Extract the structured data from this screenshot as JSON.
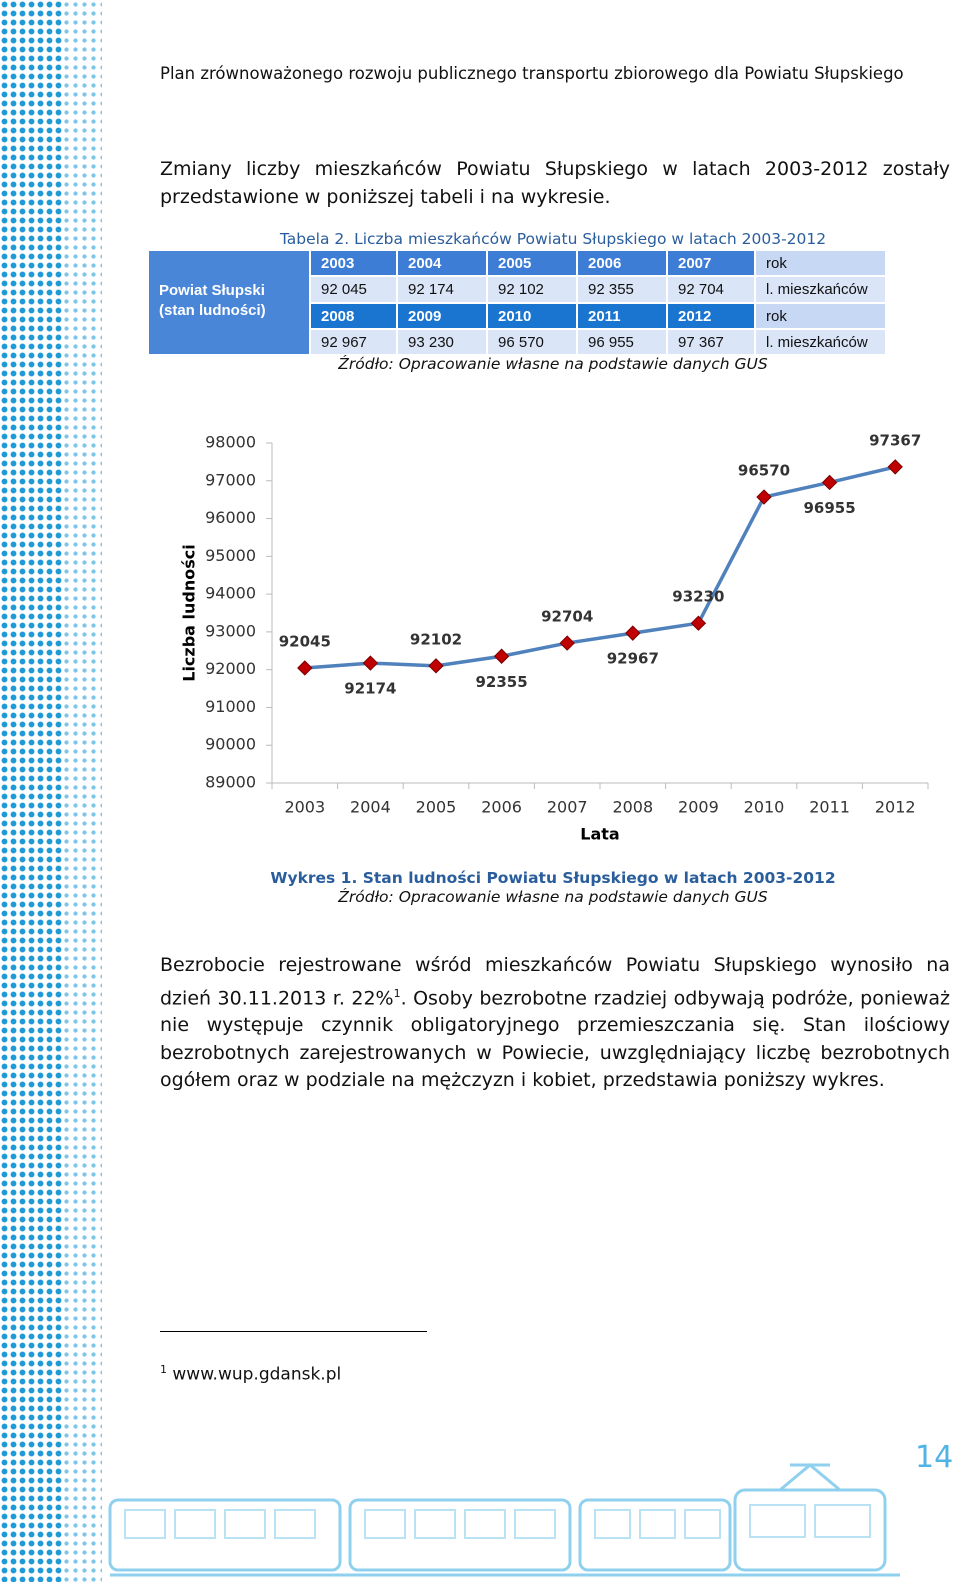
{
  "header": {
    "title": "Plan zrównoważonego rozwoju publicznego transportu zbiorowego dla Powiatu Słupskiego"
  },
  "intro": "Zmiany liczby mieszkańców Powiatu Słupskiego w latach 2003-2012 zostały przedstawione w poniższej tabeli i na wykresie.",
  "table": {
    "caption": "Tabela 2. Liczba mieszkańców Powiatu Słupskiego w latach 2003-2012",
    "stub": [
      "Powiat Słupski",
      "(stan ludności)"
    ],
    "rows": [
      [
        "2003",
        "2004",
        "2005",
        "2006",
        "2007",
        "rok"
      ],
      [
        "92 045",
        "92 174",
        "92 102",
        "92 355",
        "92 704",
        "l. mieszkańców"
      ],
      [
        "2008",
        "2009",
        "2010",
        "2011",
        "2012",
        "rok"
      ],
      [
        "92 967",
        "93 230",
        "96 570",
        "96 955",
        "97 367",
        "l. mieszkańców"
      ]
    ],
    "source": "Źródło: Opracowanie własne na podstawie danych GUS"
  },
  "chart_data": {
    "type": "line",
    "xlabel": "Lata",
    "ylabel": "Liczba ludności",
    "categories": [
      "2003",
      "2004",
      "2005",
      "2006",
      "2007",
      "2008",
      "2009",
      "2010",
      "2011",
      "2012"
    ],
    "series": [
      {
        "name": "Liczba ludności",
        "color": "#4f81bd",
        "marker_color": "#c00000",
        "values": [
          92045,
          92174,
          92102,
          92355,
          92704,
          92967,
          93230,
          96570,
          96955,
          97367
        ]
      }
    ],
    "ylim": [
      89000,
      98000
    ],
    "yticks": [
      89000,
      90000,
      91000,
      92000,
      93000,
      94000,
      95000,
      96000,
      97000,
      98000
    ],
    "grid": false
  },
  "chart_caption": {
    "title": "Wykres 1. Stan ludności Powiatu Słupskiego w latach 2003-2012",
    "source": "Źródło: Opracowanie własne na podstawie danych GUS"
  },
  "paragraph": {
    "before": "Bezrobocie rejestrowane wśród mieszkańców Powiatu Słupskiego wynosiło na dzień 30.11.2013 r. 22%",
    "ref": "1",
    "after": ". Osoby bezrobotne rzadziej odbywają podróże, ponieważ nie występuje czynnik obligatoryjnego przemieszczania się. Stan ilościowy bezrobotnych zarejestrowanych w Powiecie, uwzględniający liczbę bezrobotnych ogółem oraz w podziale na mężczyzn i kobiet, przedstawia poniższy wykres."
  },
  "footnote": {
    "number": "1",
    "text": "www.wup.gdansk.pl"
  },
  "page_number": "14"
}
